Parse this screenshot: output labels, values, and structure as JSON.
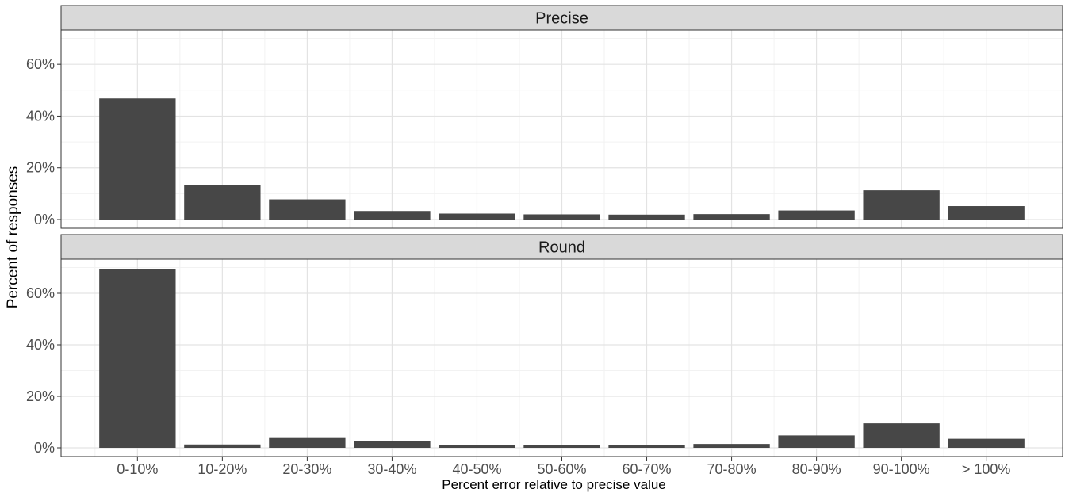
{
  "chart_data": {
    "type": "bar",
    "xlabel": "Percent error relative to precise value",
    "ylabel": "Percent of responses",
    "categories": [
      "0-10%",
      "10-20%",
      "20-30%",
      "30-40%",
      "40-50%",
      "50-60%",
      "60-70%",
      "70-80%",
      "80-90%",
      "90-100%",
      "> 100%"
    ],
    "ylim": [
      0,
      72
    ],
    "y_ticks": [
      0,
      20,
      40,
      60
    ],
    "y_tick_labels": [
      "0%",
      "20%",
      "40%",
      "60%"
    ],
    "grid": true,
    "bar_color": "#474747",
    "panels": [
      {
        "name": "Precise",
        "values": [
          46.8,
          13.2,
          7.8,
          3.3,
          2.3,
          2.0,
          1.9,
          2.1,
          3.5,
          11.3,
          5.2
        ]
      },
      {
        "name": "Round",
        "values": [
          69.3,
          1.3,
          4.1,
          2.7,
          1.1,
          1.1,
          1.0,
          1.5,
          4.8,
          9.5,
          3.5
        ]
      }
    ]
  }
}
